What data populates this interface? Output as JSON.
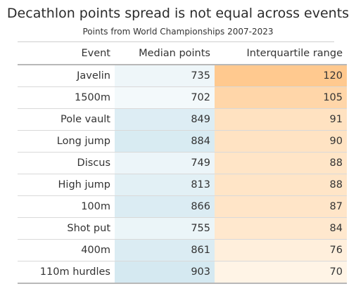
{
  "title": "Decathlon points spread is not equal across events",
  "subtitle": "Points from World Championships 2007-2023",
  "columns": {
    "event": "Event",
    "median": "Median points",
    "iqr": "Interquartile range"
  },
  "colors": {
    "median_low": "#f3f9fb",
    "median_high": "#d5e9f1",
    "iqr_low": "#fff4e6",
    "iqr_high": "#ffc98f"
  },
  "chart_data": {
    "type": "table",
    "title": "Decathlon points spread is not equal across events",
    "subtitle": "Points from World Championships 2007-2023",
    "headers": [
      "Event",
      "Median points",
      "Interquartile range"
    ],
    "rows": [
      {
        "event": "Javelin",
        "median": 735,
        "iqr": 120
      },
      {
        "event": "1500m",
        "median": 702,
        "iqr": 105
      },
      {
        "event": "Pole vault",
        "median": 849,
        "iqr": 91
      },
      {
        "event": "Long jump",
        "median": 884,
        "iqr": 90
      },
      {
        "event": "Discus",
        "median": 749,
        "iqr": 88
      },
      {
        "event": "High jump",
        "median": 813,
        "iqr": 88
      },
      {
        "event": "100m",
        "median": 866,
        "iqr": 87
      },
      {
        "event": "Shot put",
        "median": 755,
        "iqr": 84
      },
      {
        "event": "400m",
        "median": 861,
        "iqr": 76
      },
      {
        "event": "110m hurdles",
        "median": 903,
        "iqr": 70
      }
    ]
  }
}
